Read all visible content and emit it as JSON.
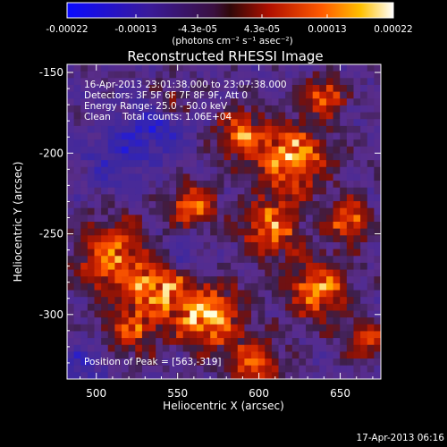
{
  "chart_data": {
    "type": "heatmap",
    "title": "Reconstructed RHESSI Image",
    "xlabel": "Heliocentric X (arcsec)",
    "ylabel": "Heliocentric Y (arcsec)",
    "xlim": [
      482,
      675
    ],
    "ylim": [
      -340,
      -145
    ],
    "xticks": [
      500,
      550,
      600,
      650
    ],
    "yticks": [
      -150,
      -200,
      -250,
      -300
    ],
    "colorbar": {
      "colormap": "blue-purple-red-yellow-white",
      "range": [
        -0.00022,
        0.00022
      ],
      "tick_labels": [
        "-0.00022",
        "-0.00013",
        "-4.3e-05",
        "4.3e-05",
        "0.00013",
        "0.00022"
      ],
      "unit_label": "(photons cm⁻² s⁻¹ asec⁻²)"
    },
    "info_lines": [
      "16-Apr-2013 23:01:38.000 to 23:07:38.000",
      "Detectors: 3F 5F 6F 7F 8F 9F, Att 0",
      "Energy Range: 25.0 - 50.0 keV",
      "Clean    Total counts: 1.06E+04"
    ],
    "peak_label": "Position of Peak = [563,-319]",
    "peak": [
      563,
      -319
    ],
    "timestamp": "17-Apr-2013 06:16"
  }
}
